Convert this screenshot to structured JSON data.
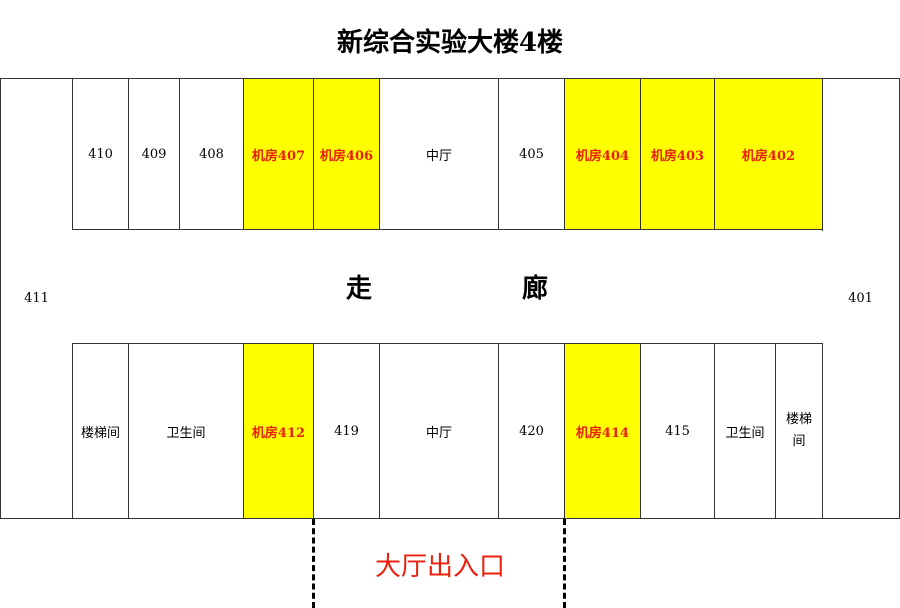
{
  "title": "新综合实验大楼4楼",
  "colors": {
    "highlight_fill": "#ffff00",
    "highlight_text": "#e8200c",
    "entrance_text": "#e8200c"
  },
  "corridor": "走　廊",
  "entrance": "大厅出入口",
  "side_rooms": {
    "left": "411",
    "right": "401"
  },
  "top_rooms": [
    {
      "label": "410",
      "highlight": false
    },
    {
      "label": "409",
      "highlight": false
    },
    {
      "label": "408",
      "highlight": false
    },
    {
      "label": "机房407",
      "highlight": true
    },
    {
      "label": "机房406",
      "highlight": true
    },
    {
      "label": "中厅",
      "highlight": false
    },
    {
      "label": "405",
      "highlight": false
    },
    {
      "label": "机房404",
      "highlight": true
    },
    {
      "label": "机房403",
      "highlight": true
    },
    {
      "label": "机房402",
      "highlight": true
    }
  ],
  "bottom_rooms": [
    {
      "label": "楼梯间",
      "highlight": false
    },
    {
      "label": "卫生间",
      "highlight": false
    },
    {
      "label": "机房412",
      "highlight": true
    },
    {
      "label": "419",
      "highlight": false
    },
    {
      "label": "中厅",
      "highlight": false
    },
    {
      "label": "420",
      "highlight": false
    },
    {
      "label": "机房414",
      "highlight": true
    },
    {
      "label": "415",
      "highlight": false
    },
    {
      "label": "卫生间",
      "highlight": false
    },
    {
      "label": "楼梯间",
      "highlight": false
    }
  ]
}
